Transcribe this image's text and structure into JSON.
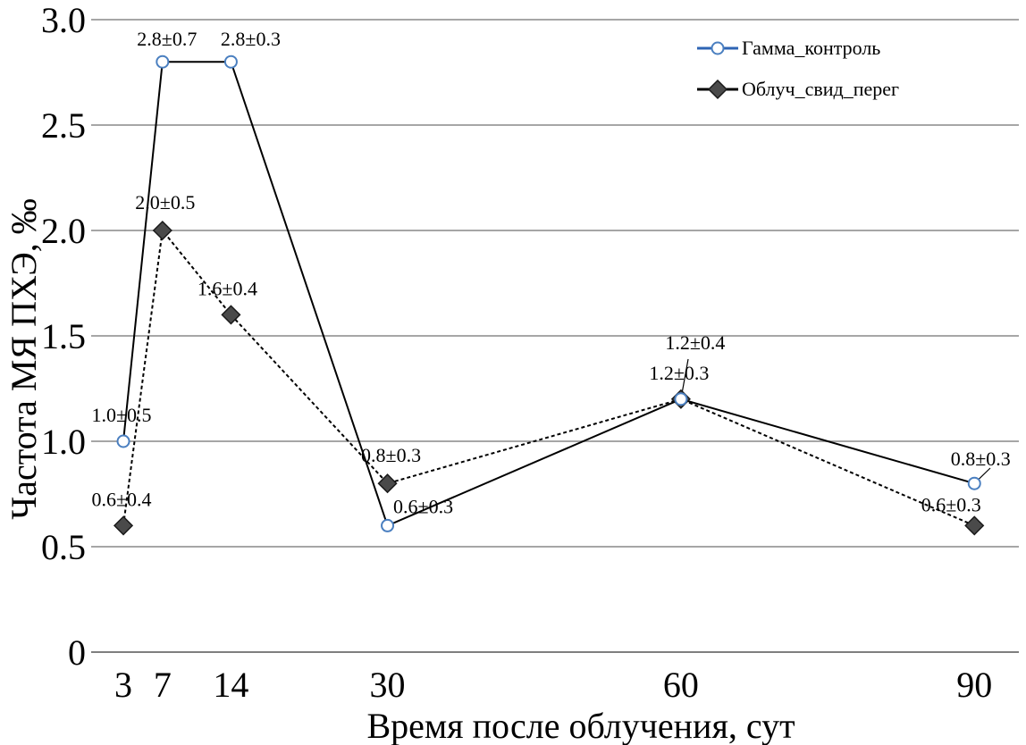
{
  "chart_data": {
    "type": "line",
    "title": "",
    "xlabel": "Время после облучения, сут",
    "ylabel": "Частота МЯ ПХЭ, ‰",
    "ylim": [
      0,
      3.0
    ],
    "yticks": [
      "0",
      "0.5",
      "1.0",
      "1.5",
      "2.0",
      "2.5",
      "3.0"
    ],
    "yticks_values": [
      0,
      0.5,
      1.0,
      1.5,
      2.0,
      2.5,
      3.0
    ],
    "xticks": [
      "3",
      "7",
      "14",
      "30",
      "60",
      "90"
    ],
    "x": [
      3,
      7,
      14,
      30,
      60,
      90
    ],
    "grid": true,
    "legend_position": "top-right",
    "series": [
      {
        "name": "Гамма_контроль",
        "values": [
          1.0,
          2.8,
          2.8,
          0.6,
          1.2,
          0.8
        ],
        "labels": [
          "1.0±0.5",
          "2.8±0.7",
          "2.8±0.3",
          "0.6±0.3",
          "1.2±0.3",
          "0.8±0.3"
        ],
        "line_style": "solid",
        "marker": "circle",
        "marker_color": "#4a7fc0",
        "line_color": "#000000",
        "legend_line_color": "#2e64b4"
      },
      {
        "name": "Облуч_свид_перег",
        "values": [
          0.6,
          2.0,
          1.6,
          0.8,
          1.2,
          0.6
        ],
        "labels": [
          "0.6±0.4",
          "2.0±0.5",
          "1.6±0.4",
          "0.8±0.3",
          "1.2±0.4",
          "0.6±0.3"
        ],
        "line_style": "dashed",
        "marker": "diamond",
        "marker_color": "#4a4a4a",
        "line_color": "#000000",
        "legend_line_color": "#000000"
      }
    ]
  }
}
